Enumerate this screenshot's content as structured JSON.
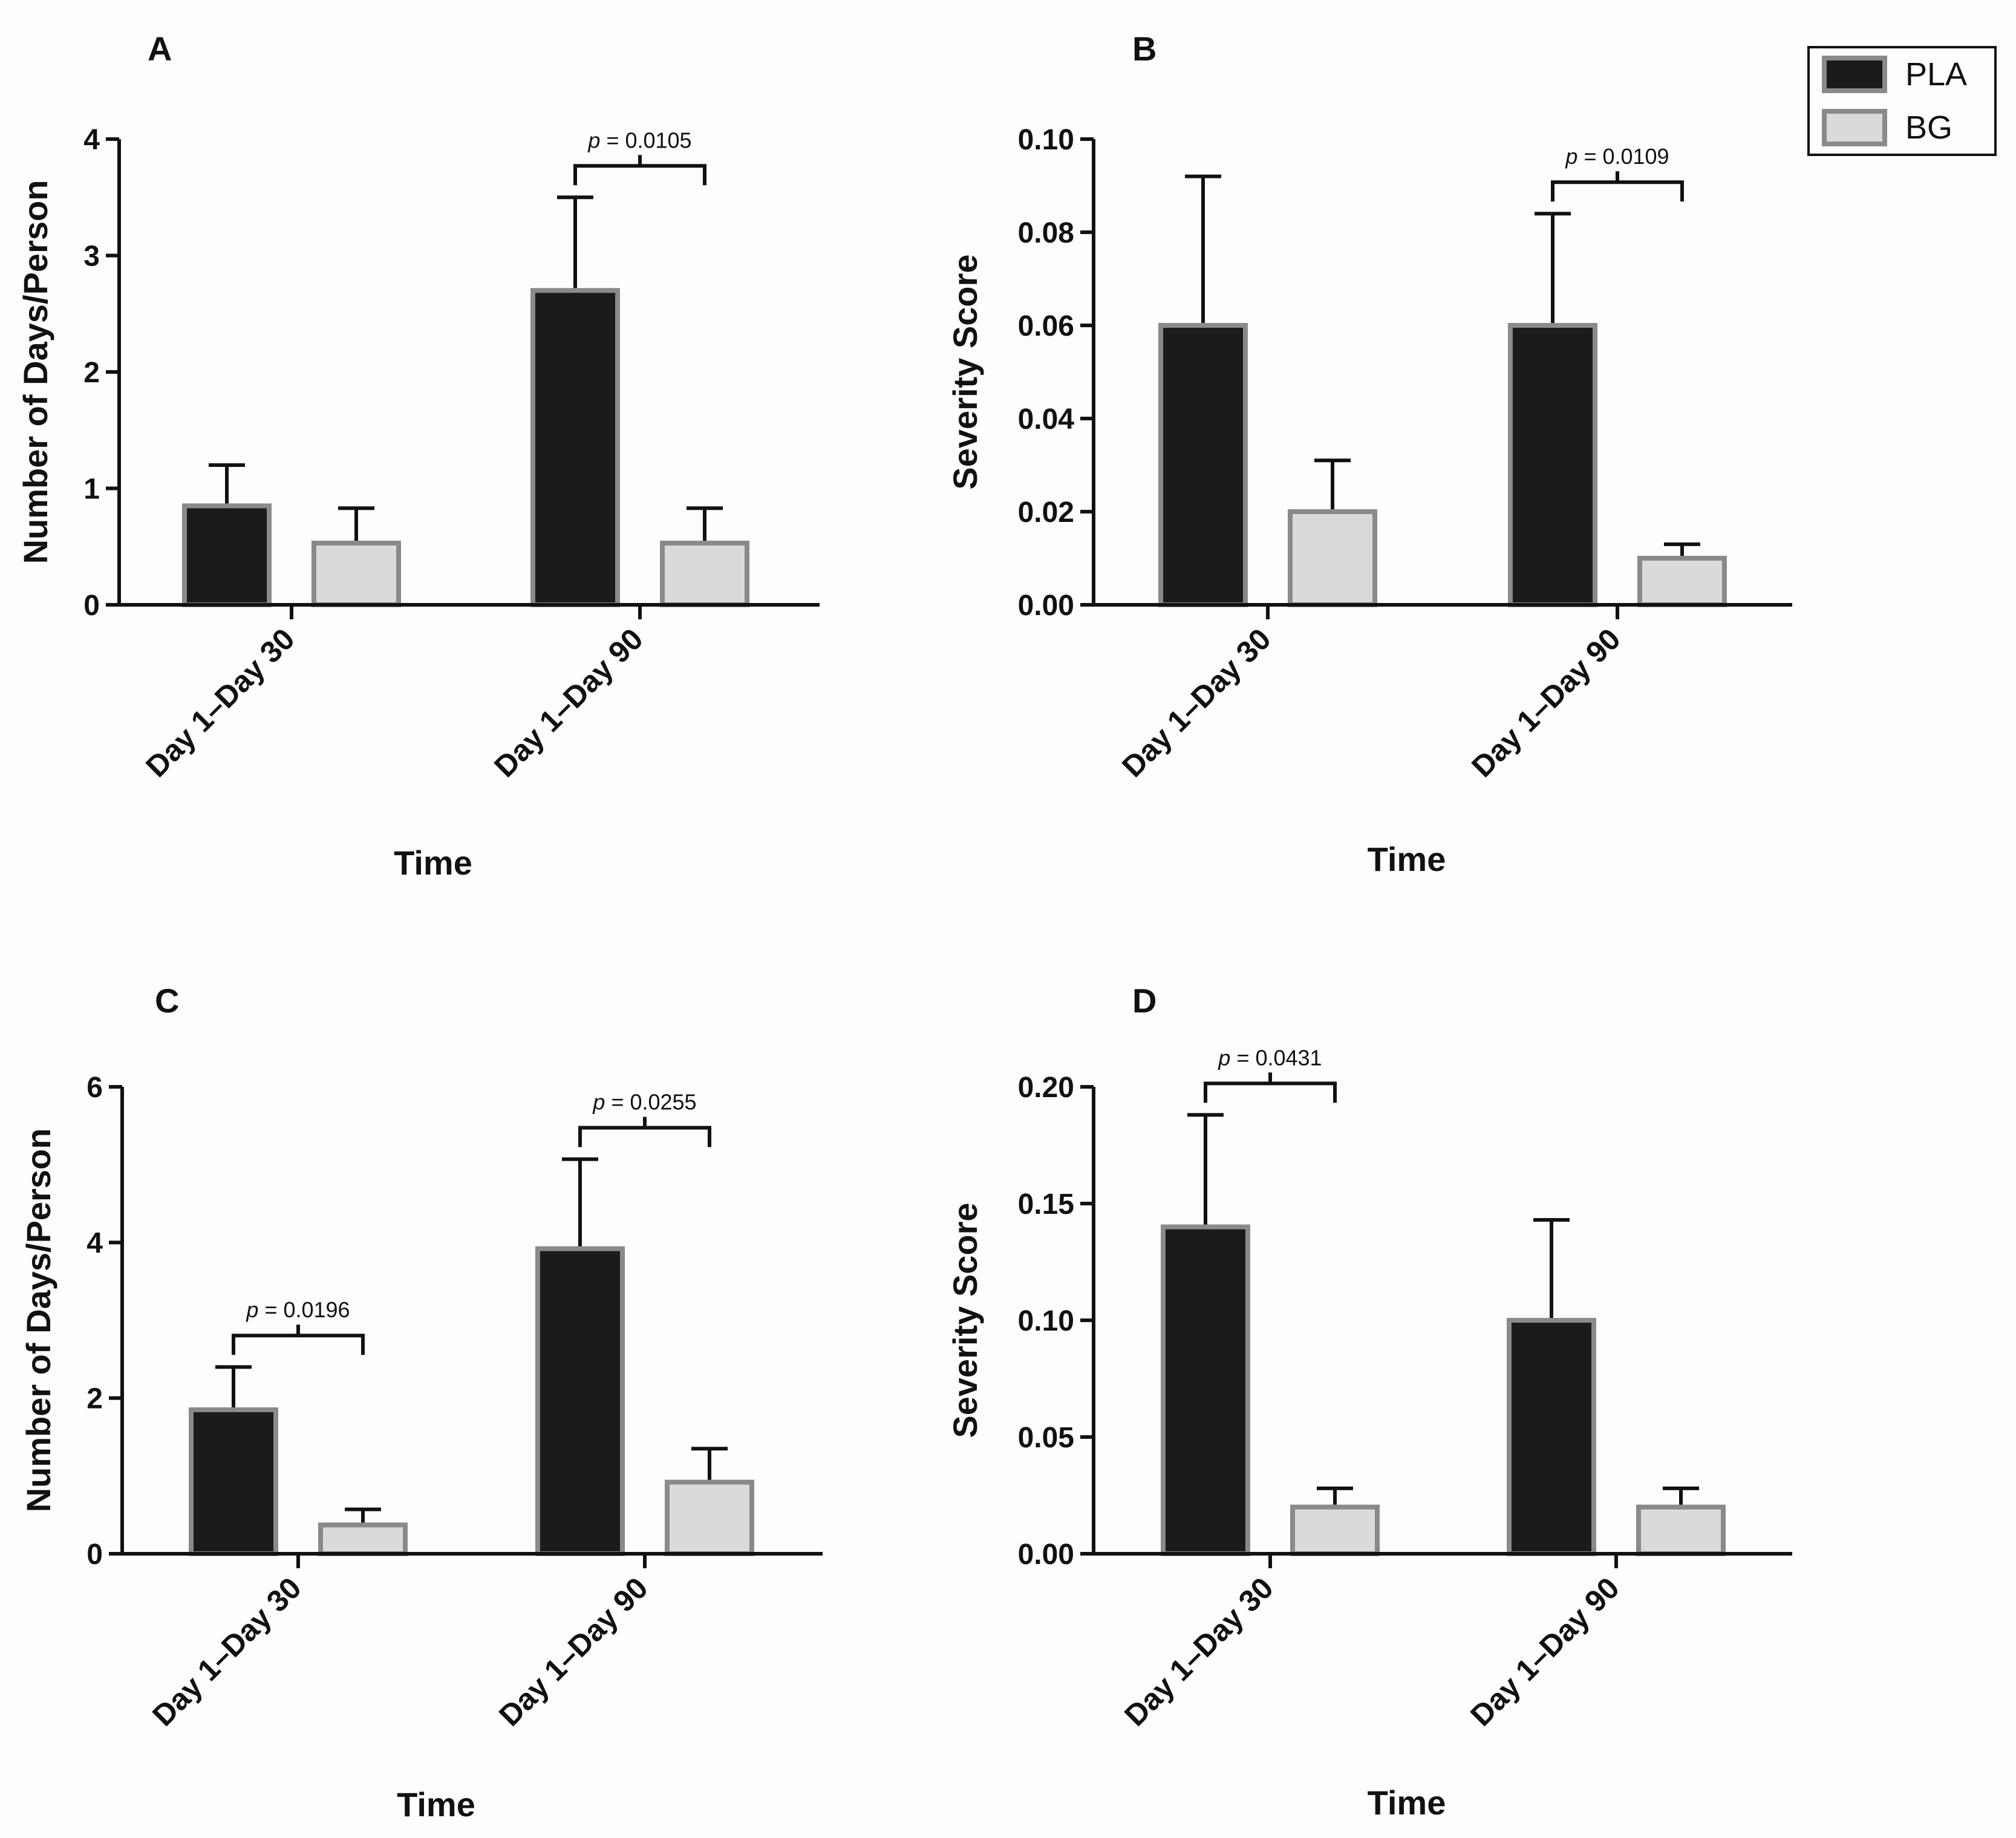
{
  "colors": {
    "PLA": "#1c1a1b",
    "BG": "#d8dadb",
    "bar_edge": "#8a8a8a",
    "axis": "#111111",
    "background": "#fdfdfd"
  },
  "legend": {
    "items": [
      {
        "name": "PLA",
        "color": "#1c1a1b"
      },
      {
        "name": "BG",
        "color": "#d8dadb"
      }
    ]
  },
  "chart_data": [
    {
      "panel": "A",
      "type": "bar",
      "categories": [
        "Day 1–Day 30",
        "Day 1–Day 90"
      ],
      "series": [
        {
          "name": "PLA",
          "values": [
            0.85,
            2.7
          ],
          "errors": [
            0.35,
            0.8
          ]
        },
        {
          "name": "BG",
          "values": [
            0.53,
            0.53
          ],
          "errors": [
            0.3,
            0.3
          ]
        }
      ],
      "xlabel": "Time",
      "ylabel": "Number of Days/Person",
      "ylim": [
        0,
        4
      ],
      "yticks": [
        "0",
        "1",
        "2",
        "3",
        "4"
      ],
      "yticks_values": [
        0,
        1,
        2,
        3,
        4
      ],
      "annotations": [
        {
          "category": 1,
          "p": "p",
          "text": " = 0.0105"
        }
      ]
    },
    {
      "panel": "B",
      "type": "bar",
      "categories": [
        "Day 1–Day 30",
        "Day 1–Day 90"
      ],
      "series": [
        {
          "name": "PLA",
          "values": [
            0.06,
            0.06
          ],
          "errors": [
            0.032,
            0.024
          ]
        },
        {
          "name": "BG",
          "values": [
            0.02,
            0.01
          ],
          "errors": [
            0.011,
            0.003
          ]
        }
      ],
      "xlabel": "Time",
      "ylabel": "Severity Score",
      "ylim": [
        0,
        0.1
      ],
      "yticks": [
        "0.00",
        "0.02",
        "0.04",
        "0.06",
        "0.08",
        "0.10"
      ],
      "yticks_values": [
        0,
        0.02,
        0.04,
        0.06,
        0.08,
        0.1
      ],
      "annotations": [
        {
          "category": 1,
          "p": "p",
          "text": " = 0.0109"
        }
      ]
    },
    {
      "panel": "C",
      "type": "bar",
      "categories": [
        "Day 1–Day 30",
        "Day 1–Day 90"
      ],
      "series": [
        {
          "name": "PLA",
          "values": [
            1.85,
            3.92
          ],
          "errors": [
            0.55,
            1.15
          ]
        },
        {
          "name": "BG",
          "values": [
            0.37,
            0.92
          ],
          "errors": [
            0.2,
            0.43
          ]
        }
      ],
      "xlabel": "Time",
      "ylabel": "Number of Days/Person",
      "ylim": [
        0,
        6
      ],
      "yticks": [
        "0",
        "2",
        "4",
        "6"
      ],
      "yticks_values": [
        0,
        2,
        4,
        6
      ],
      "annotations": [
        {
          "category": 0,
          "p": "p",
          "text": " = 0.0196"
        },
        {
          "category": 1,
          "p": "p",
          "text": " = 0.0255"
        }
      ]
    },
    {
      "panel": "D",
      "type": "bar",
      "categories": [
        "Day 1–Day 30",
        "Day 1–Day 90"
      ],
      "series": [
        {
          "name": "PLA",
          "values": [
            0.14,
            0.1
          ],
          "errors": [
            0.048,
            0.043
          ]
        },
        {
          "name": "BG",
          "values": [
            0.02,
            0.02
          ],
          "errors": [
            0.008,
            0.008
          ]
        }
      ],
      "xlabel": "Time",
      "ylabel": "Severity Score",
      "ylim": [
        0,
        0.2
      ],
      "yticks": [
        "0.00",
        "0.05",
        "0.10",
        "0.15",
        "0.20"
      ],
      "yticks_values": [
        0,
        0.05,
        0.1,
        0.15,
        0.2
      ],
      "annotations": [
        {
          "category": 0,
          "p": "p",
          "text": " = 0.0431"
        }
      ]
    }
  ]
}
